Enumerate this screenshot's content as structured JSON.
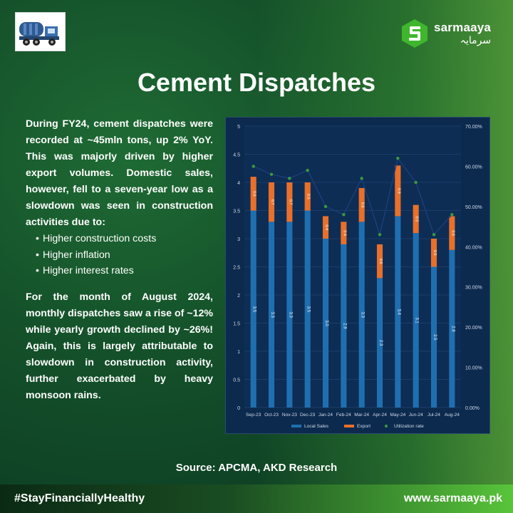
{
  "brand": {
    "name": "sarmaaya",
    "urdu": "سرمایہ",
    "accent": "#5dd439"
  },
  "logo_icon": "cement-mixer-truck-icon",
  "title": "Cement Dispatches",
  "body": {
    "para1": "During FY24, cement dispatches were recorded at ~45mln tons, up 2% YoY. This was majorly driven by higher export volumes. Domestic sales, however, fell to a seven-year low as a slowdown was seen in construction activities due to:",
    "bullets": [
      "Higher construction costs",
      "Higher inflation",
      "Higher interest rates"
    ],
    "para2": "For the month of August 2024, monthly dispatches saw a rise of ~12% while yearly growth declined by ~26%! Again, this is largely attributable to slowdown in construction activity, further exacerbated by heavy monsoon rains."
  },
  "chart_data": {
    "type": "bar",
    "stacked": true,
    "categories": [
      "Sep-23",
      "Oct-23",
      "Nov-23",
      "Dec-23",
      "Jan-24",
      "Feb-24",
      "Mar-24",
      "Apr-24",
      "May-24",
      "Jun-24",
      "Jul-24",
      "Aug-24"
    ],
    "series": [
      {
        "name": "Local Sales",
        "color": "#1f6fb0",
        "values": [
          3.5,
          3.3,
          3.3,
          3.5,
          3.0,
          2.9,
          3.3,
          2.3,
          3.4,
          3.1,
          2.5,
          2.8
        ],
        "labels": [
          "3.5",
          "3.3",
          "3.3",
          "3.5",
          "3.0",
          "2.9",
          "3.3",
          "2.3",
          "3.4",
          "3.1",
          "2.5",
          "2.8"
        ]
      },
      {
        "name": "Export",
        "color": "#e8702a",
        "values": [
          0.6,
          0.7,
          0.7,
          0.5,
          0.4,
          0.4,
          0.6,
          0.6,
          0.9,
          0.5,
          0.5,
          0.6
        ],
        "labels": [
          "0.6",
          "0.7",
          "0.7",
          "0.5",
          "0.4",
          "0.4",
          "0.6",
          "0.6",
          "0.9",
          "0.5",
          "0.5",
          "0.6"
        ]
      },
      {
        "name": "Utilization rate",
        "color": "#3c9a3c",
        "axis": "right",
        "values": [
          60,
          58,
          57,
          59,
          50,
          48,
          57,
          43,
          62,
          56,
          43,
          48
        ]
      }
    ],
    "y_left": {
      "min": 0,
      "max": 5,
      "ticks": [
        "0",
        "0.5",
        "1",
        "1.5",
        "2",
        "2.5",
        "3",
        "3.5",
        "4",
        "4.5",
        "5"
      ]
    },
    "y_right": {
      "min": 0,
      "max": 70,
      "ticks": [
        "0.00%",
        "10.00%",
        "20.00%",
        "30.00%",
        "40.00%",
        "50.00%",
        "60.00%",
        "70.00%"
      ]
    },
    "legend_position": "bottom",
    "grid": true
  },
  "source": "Source: APCMA, AKD Research",
  "footer": {
    "hashtag": "#StayFinanciallyHealthy",
    "website": "www.sarmaaya.pk"
  }
}
